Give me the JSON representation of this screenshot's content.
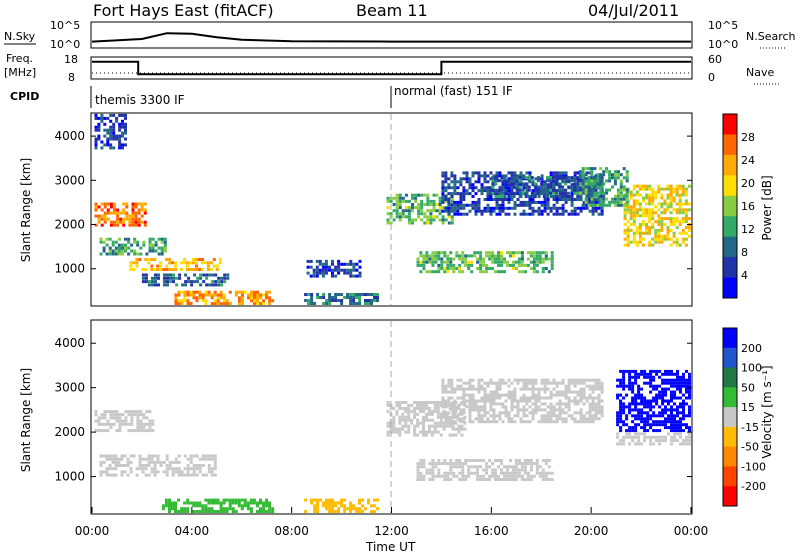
{
  "header": {
    "title": "Fort Hays East (fitACF)",
    "beam": "Beam 11",
    "date": "04/Jul/2011"
  },
  "strip_labels": {
    "nsky": "N.Sky",
    "nsearch": "N.Search",
    "freq_top": "Freq.",
    "freq_unit": "[MHz]",
    "nave": "Nave",
    "cpid": "CPID",
    "nsky_hi": "10^5",
    "nsky_lo": "10^0",
    "nsearch_hi": "10^5",
    "nsearch_lo": "10^0",
    "freq_hi": "18",
    "freq_lo": "8",
    "nave_hi": "60",
    "nave_lo": "0"
  },
  "cpid_modes": [
    {
      "label": "themis 3300 IF",
      "start_hour": 0
    },
    {
      "label": "normal (fast) 151 IF",
      "start_hour": 12
    }
  ],
  "axes": {
    "ylabel": "Slant Range [km]",
    "xlabel": "Time UT",
    "yticks": [
      "1000",
      "2000",
      "3000",
      "4000"
    ],
    "xticks": [
      "00:00",
      "04:00",
      "08:00",
      "12:00",
      "16:00",
      "20:00",
      "00:00"
    ]
  },
  "colorbars": {
    "power": {
      "label": "Power [dB]",
      "ticks": [
        "28",
        "24",
        "20",
        "16",
        "12",
        "8",
        "4"
      ],
      "colors": [
        "#ff0000",
        "#ff6600",
        "#ffaa00",
        "#ffdd00",
        "#88cc44",
        "#33aa66",
        "#226688",
        "#2233aa",
        "#0000ff"
      ]
    },
    "velocity": {
      "label": "Velocity [m s⁻¹]",
      "ticks": [
        "200",
        "100",
        "50",
        "15",
        "-15",
        "-50",
        "-100",
        "-200"
      ],
      "colors": [
        "#0000ff",
        "#2255cc",
        "#227744",
        "#33bb33",
        "#c8c8c8",
        "#ffbb00",
        "#ff8800",
        "#ff4400",
        "#ff0000"
      ]
    }
  },
  "chart_data": [
    {
      "type": "line",
      "title": "N.Sky",
      "x_range_hours": [
        0,
        24
      ],
      "x": [
        0,
        2,
        3,
        4,
        5,
        6,
        8,
        12,
        16,
        20,
        24
      ],
      "y_log10": [
        1.0,
        1.6,
        2.9,
        2.8,
        2.0,
        1.4,
        1.1,
        1.0,
        1.0,
        1.0,
        1.0
      ]
    },
    {
      "type": "line",
      "title": "Freq. [MHz]",
      "ylim": [
        8,
        18
      ],
      "series": [
        {
          "name": "Freq.",
          "x": [
            0,
            1.85,
            1.85,
            14.0,
            14.0,
            24
          ],
          "y": [
            15.8,
            15.8,
            10.2,
            10.2,
            15.8,
            15.8
          ]
        }
      ]
    },
    {
      "type": "heatmap",
      "title": "Power [dB]",
      "x_range_hours": [
        0,
        24
      ],
      "ylim": [
        180,
        4500
      ],
      "blobs": [
        {
          "t0": 0.1,
          "t1": 2.2,
          "r0": 1950,
          "r1": 2500,
          "v": 26
        },
        {
          "t0": 0.3,
          "t1": 3.0,
          "r0": 1300,
          "r1": 1700,
          "v": 12
        },
        {
          "t0": 1.5,
          "t1": 5.2,
          "r0": 950,
          "r1": 1250,
          "v": 22
        },
        {
          "t0": 2.0,
          "t1": 5.5,
          "r0": 600,
          "r1": 900,
          "v": 8
        },
        {
          "t0": 3.3,
          "t1": 7.3,
          "r0": 180,
          "r1": 500,
          "v": 24
        },
        {
          "t0": 0.1,
          "t1": 1.4,
          "r0": 3700,
          "r1": 4500,
          "v": 6
        },
        {
          "t0": 8.5,
          "t1": 11.5,
          "r0": 180,
          "r1": 450,
          "v": 10
        },
        {
          "t0": 8.6,
          "t1": 10.8,
          "r0": 800,
          "r1": 1200,
          "v": 6
        },
        {
          "t0": 11.8,
          "t1": 14.5,
          "r0": 2000,
          "r1": 2700,
          "v": 14
        },
        {
          "t0": 13.0,
          "t1": 18.5,
          "r0": 900,
          "r1": 1400,
          "v": 14
        },
        {
          "t0": 14.0,
          "t1": 20.5,
          "r0": 2200,
          "r1": 3200,
          "v": 6
        },
        {
          "t0": 16.0,
          "t1": 20.5,
          "r0": 2600,
          "r1": 3100,
          "v": 8
        },
        {
          "t0": 21.3,
          "t1": 24.0,
          "r0": 1500,
          "r1": 2900,
          "v": 20
        },
        {
          "t0": 19.5,
          "t1": 21.5,
          "r0": 2400,
          "r1": 3300,
          "v": 12
        }
      ]
    },
    {
      "type": "heatmap",
      "title": "Velocity [m s⁻¹]",
      "x_range_hours": [
        0,
        24
      ],
      "ylim": [
        180,
        4500
      ],
      "blobs": [
        {
          "t0": 0.1,
          "t1": 2.5,
          "r0": 2000,
          "r1": 2500,
          "v": 0
        },
        {
          "t0": 0.3,
          "t1": 5.0,
          "r0": 1000,
          "r1": 1500,
          "v": 0
        },
        {
          "t0": 2.8,
          "t1": 7.3,
          "r0": 180,
          "r1": 500,
          "v": 40
        },
        {
          "t0": 8.5,
          "t1": 11.5,
          "r0": 180,
          "r1": 500,
          "v": -50
        },
        {
          "t0": 11.8,
          "t1": 15.0,
          "r0": 1900,
          "r1": 2700,
          "v": 0
        },
        {
          "t0": 13.0,
          "t1": 18.5,
          "r0": 900,
          "r1": 1400,
          "v": 0
        },
        {
          "t0": 14.0,
          "t1": 20.5,
          "r0": 2200,
          "r1": 3200,
          "v": 0
        },
        {
          "t0": 21.0,
          "t1": 24.0,
          "r0": 2000,
          "r1": 3400,
          "v": 180
        },
        {
          "t0": 21.0,
          "t1": 24.0,
          "r0": 1700,
          "r1": 2000,
          "v": 0
        }
      ]
    }
  ]
}
